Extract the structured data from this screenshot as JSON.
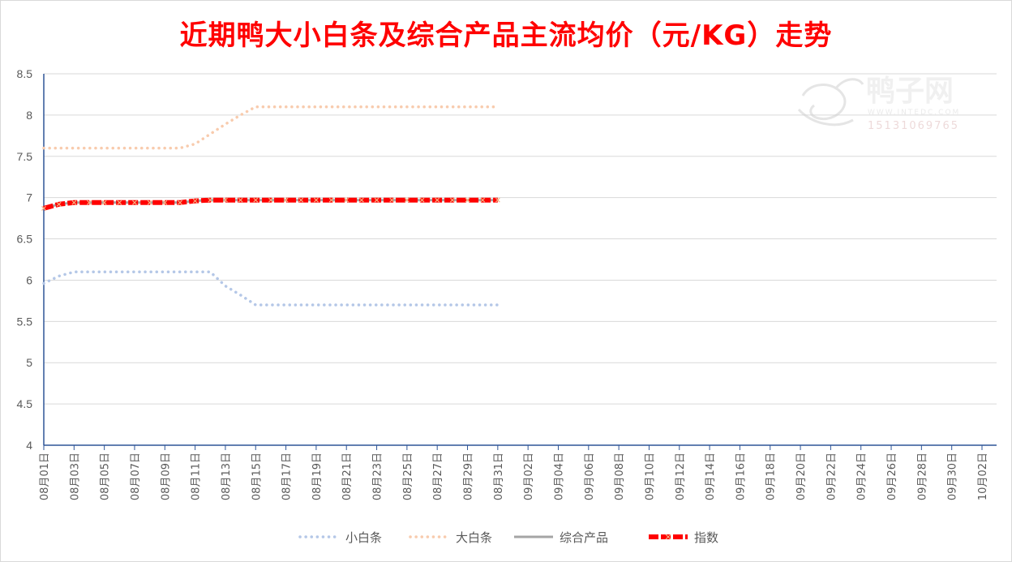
{
  "chart_data": {
    "type": "line",
    "title": "近期鸭大小白条及综合产品主流均价（元/KG）走势",
    "ylim": [
      4,
      8.5
    ],
    "yticks": [
      "8.5",
      "8",
      "7.5",
      "7",
      "6.5",
      "6",
      "5.5",
      "5",
      "4.5",
      "4"
    ],
    "x_labels": [
      "08月01日",
      "08月03日",
      "08月05日",
      "08月07日",
      "08月09日",
      "08月11日",
      "08月13日",
      "08月15日",
      "08月17日",
      "08月19日",
      "08月21日",
      "08月23日",
      "08月25日",
      "08月27日",
      "08月29日",
      "08月31日",
      "09月02日",
      "09月04日",
      "09月06日",
      "09月08日",
      "09月10日",
      "09月12日",
      "09月14日",
      "09月16日",
      "09月18日",
      "09月20日",
      "09月22日",
      "09月24日",
      "09月26日",
      "09月28日",
      "09月30日",
      "10月02日"
    ],
    "x_range": [
      "08月01日",
      "10月02日"
    ],
    "grid": true,
    "legend_position": "bottom",
    "series": [
      {
        "name": "小白条",
        "color": "#b4c7e7",
        "style": "dotted",
        "points": [
          [
            "08月01日",
            5.96
          ],
          [
            "08月02日",
            6.05
          ],
          [
            "08月03日",
            6.1
          ],
          [
            "08月04日",
            6.1
          ],
          [
            "08月05日",
            6.1
          ],
          [
            "08月06日",
            6.1
          ],
          [
            "08月07日",
            6.1
          ],
          [
            "08月08日",
            6.1
          ],
          [
            "08月09日",
            6.1
          ],
          [
            "08月10日",
            6.1
          ],
          [
            "08月11日",
            6.1
          ],
          [
            "08月12日",
            6.1
          ],
          [
            "08月13日",
            5.93
          ],
          [
            "08月14日",
            5.82
          ],
          [
            "08月15日",
            5.7
          ],
          [
            "08月16日",
            5.7
          ],
          [
            "08月17日",
            5.7
          ],
          [
            "08月18日",
            5.7
          ],
          [
            "08月19日",
            5.7
          ],
          [
            "08月20日",
            5.7
          ],
          [
            "08月21日",
            5.7
          ],
          [
            "08月22日",
            5.7
          ],
          [
            "08月23日",
            5.7
          ],
          [
            "08月24日",
            5.7
          ],
          [
            "08月25日",
            5.7
          ],
          [
            "08月26日",
            5.7
          ],
          [
            "08月27日",
            5.7
          ],
          [
            "08月28日",
            5.7
          ],
          [
            "08月29日",
            5.7
          ],
          [
            "08月30日",
            5.7
          ],
          [
            "08月31日",
            5.7
          ]
        ]
      },
      {
        "name": "大白条",
        "color": "#f8cbad",
        "style": "dotted",
        "points": [
          [
            "08月01日",
            7.6
          ],
          [
            "08月02日",
            7.6
          ],
          [
            "08月03日",
            7.6
          ],
          [
            "08月04日",
            7.6
          ],
          [
            "08月05日",
            7.6
          ],
          [
            "08月06日",
            7.6
          ],
          [
            "08月07日",
            7.6
          ],
          [
            "08月08日",
            7.6
          ],
          [
            "08月09日",
            7.6
          ],
          [
            "08月10日",
            7.6
          ],
          [
            "08月11日",
            7.65
          ],
          [
            "08月12日",
            7.77
          ],
          [
            "08月13日",
            7.89
          ],
          [
            "08月14日",
            8.0
          ],
          [
            "08月15日",
            8.1
          ],
          [
            "08月16日",
            8.1
          ],
          [
            "08月17日",
            8.1
          ],
          [
            "08月18日",
            8.1
          ],
          [
            "08月19日",
            8.1
          ],
          [
            "08月20日",
            8.1
          ],
          [
            "08月21日",
            8.1
          ],
          [
            "08月22日",
            8.1
          ],
          [
            "08月23日",
            8.1
          ],
          [
            "08月24日",
            8.1
          ],
          [
            "08月25日",
            8.1
          ],
          [
            "08月26日",
            8.1
          ],
          [
            "08月27日",
            8.1
          ],
          [
            "08月28日",
            8.1
          ],
          [
            "08月29日",
            8.1
          ],
          [
            "08月30日",
            8.1
          ],
          [
            "08月31日",
            8.1
          ]
        ]
      },
      {
        "name": "综合产品",
        "color": "#a5a5a5",
        "style": "solid",
        "points": [
          [
            "08月01日",
            6.87
          ],
          [
            "08月02日",
            6.92
          ],
          [
            "08月03日",
            6.94
          ],
          [
            "08月04日",
            6.94
          ],
          [
            "08月05日",
            6.94
          ],
          [
            "08月06日",
            6.94
          ],
          [
            "08月07日",
            6.94
          ],
          [
            "08月08日",
            6.94
          ],
          [
            "08月09日",
            6.94
          ],
          [
            "08月10日",
            6.94
          ],
          [
            "08月11日",
            6.96
          ],
          [
            "08月12日",
            6.97
          ],
          [
            "08月13日",
            6.97
          ],
          [
            "08月14日",
            6.97
          ],
          [
            "08月15日",
            6.97
          ],
          [
            "08月16日",
            6.97
          ],
          [
            "08月17日",
            6.97
          ],
          [
            "08月18日",
            6.97
          ],
          [
            "08月19日",
            6.97
          ],
          [
            "08月20日",
            6.97
          ],
          [
            "08月21日",
            6.97
          ],
          [
            "08月22日",
            6.97
          ],
          [
            "08月23日",
            6.97
          ],
          [
            "08月24日",
            6.97
          ],
          [
            "08月25日",
            6.97
          ],
          [
            "08月26日",
            6.97
          ],
          [
            "08月27日",
            6.97
          ],
          [
            "08月28日",
            6.97
          ],
          [
            "08月29日",
            6.97
          ],
          [
            "08月30日",
            6.97
          ],
          [
            "08月31日",
            6.97
          ]
        ]
      },
      {
        "name": "指数",
        "color": "#ff0000",
        "style": "dashed-cross",
        "points": [
          [
            "08月01日",
            6.87
          ],
          [
            "08月02日",
            6.92
          ],
          [
            "08月03日",
            6.94
          ],
          [
            "08月04日",
            6.94
          ],
          [
            "08月05日",
            6.94
          ],
          [
            "08月06日",
            6.94
          ],
          [
            "08月07日",
            6.94
          ],
          [
            "08月08日",
            6.94
          ],
          [
            "08月09日",
            6.94
          ],
          [
            "08月10日",
            6.94
          ],
          [
            "08月11日",
            6.96
          ],
          [
            "08月12日",
            6.97
          ],
          [
            "08月13日",
            6.97
          ],
          [
            "08月14日",
            6.97
          ],
          [
            "08月15日",
            6.97
          ],
          [
            "08月16日",
            6.97
          ],
          [
            "08月17日",
            6.97
          ],
          [
            "08月18日",
            6.97
          ],
          [
            "08月19日",
            6.97
          ],
          [
            "08月20日",
            6.97
          ],
          [
            "08月21日",
            6.97
          ],
          [
            "08月22日",
            6.97
          ],
          [
            "08月23日",
            6.97
          ],
          [
            "08月24日",
            6.97
          ],
          [
            "08月25日",
            6.97
          ],
          [
            "08月26日",
            6.97
          ],
          [
            "08月27日",
            6.97
          ],
          [
            "08月28日",
            6.97
          ],
          [
            "08月29日",
            6.97
          ],
          [
            "08月30日",
            6.97
          ],
          [
            "08月31日",
            6.97
          ]
        ]
      }
    ]
  },
  "watermark": {
    "name": "鸭子网",
    "site": "WWW.INTEDC.COM",
    "phone": "15131069765"
  }
}
